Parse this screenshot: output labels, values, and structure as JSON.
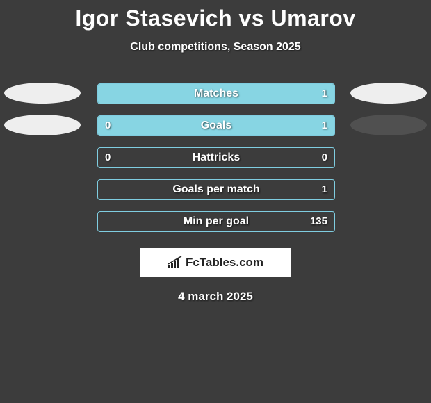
{
  "title": "Igor Stasevich vs Umarov",
  "subtitle": "Club competitions, Season 2025",
  "date": "4 march 2025",
  "logo_text": "FcTables.com",
  "colors": {
    "background": "#3c3c3c",
    "bar_fill": "#87d5e3",
    "bar_border": "#7fcde0",
    "text": "#ffffff",
    "ellipse_light": "#eeeeee",
    "ellipse_dark": "#505050",
    "logo_bg": "#ffffff",
    "logo_fg": "#222222"
  },
  "stats": [
    {
      "label": "Matches",
      "left_val": "",
      "right_val": "1",
      "left_fill_pct": 0,
      "right_fill_pct": 100,
      "show_left_ellipse": true,
      "show_right_ellipse": true,
      "left_ellipse_color": "#eeeeee",
      "right_ellipse_color": "#eeeeee"
    },
    {
      "label": "Goals",
      "left_val": "0",
      "right_val": "1",
      "left_fill_pct": 18,
      "right_fill_pct": 82,
      "show_left_ellipse": true,
      "show_right_ellipse": true,
      "left_ellipse_color": "#eeeeee",
      "right_ellipse_color": "#505050"
    },
    {
      "label": "Hattricks",
      "left_val": "0",
      "right_val": "0",
      "left_fill_pct": 0,
      "right_fill_pct": 0,
      "show_left_ellipse": false,
      "show_right_ellipse": false,
      "left_ellipse_color": "",
      "right_ellipse_color": ""
    },
    {
      "label": "Goals per match",
      "left_val": "",
      "right_val": "1",
      "left_fill_pct": 0,
      "right_fill_pct": 0,
      "show_left_ellipse": false,
      "show_right_ellipse": false,
      "left_ellipse_color": "",
      "right_ellipse_color": ""
    },
    {
      "label": "Min per goal",
      "left_val": "",
      "right_val": "135",
      "left_fill_pct": 0,
      "right_fill_pct": 0,
      "show_left_ellipse": false,
      "show_right_ellipse": false,
      "left_ellipse_color": "",
      "right_ellipse_color": ""
    }
  ]
}
